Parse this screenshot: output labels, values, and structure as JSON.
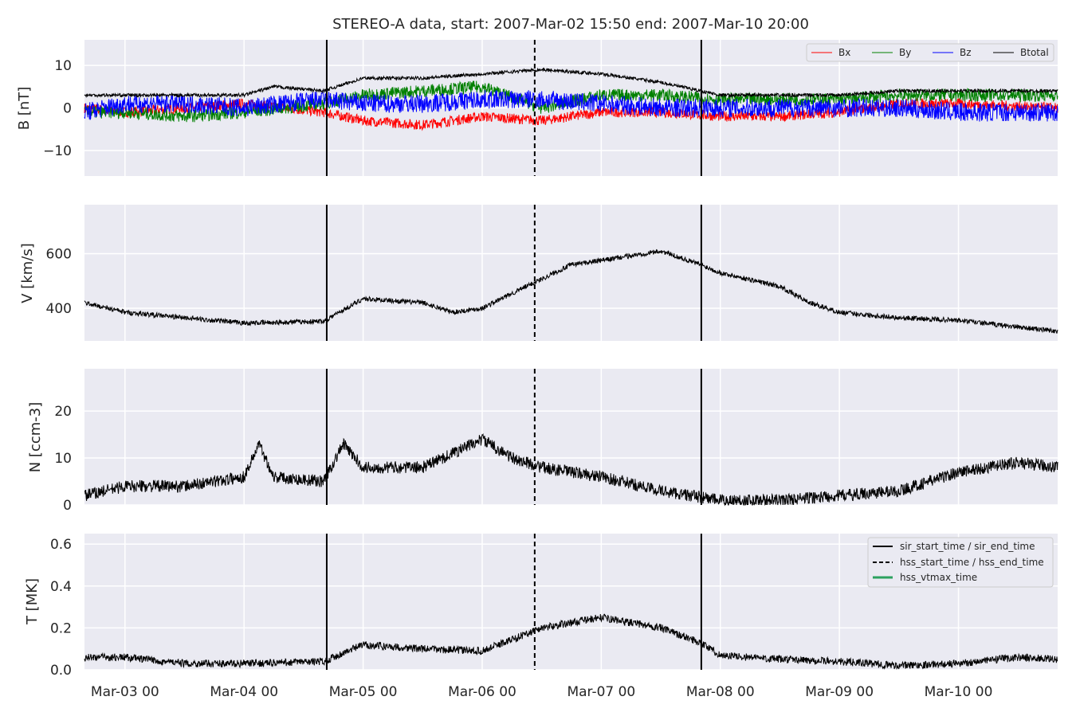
{
  "chart_data": {
    "type": "line",
    "title": "STEREO-A data, start: 2007-Mar-02 15:50  end: 2007-Mar-10 20:00",
    "x_range": [
      "2007-03-02 15:50",
      "2007-03-10 20:00"
    ],
    "x_ticks": [
      {
        "t": "2007-03-03 00:00",
        "label": "Mar-03 00"
      },
      {
        "t": "2007-03-04 00:00",
        "label": "Mar-04 00"
      },
      {
        "t": "2007-03-05 00:00",
        "label": "Mar-05 00"
      },
      {
        "t": "2007-03-06 00:00",
        "label": "Mar-06 00"
      },
      {
        "t": "2007-03-07 00:00",
        "label": "Mar-07 00"
      },
      {
        "t": "2007-03-08 00:00",
        "label": "Mar-08 00"
      },
      {
        "t": "2007-03-09 00:00",
        "label": "Mar-09 00"
      },
      {
        "t": "2007-03-10 00:00",
        "label": "Mar-10 00"
      }
    ],
    "event_lines": [
      {
        "t": "2007-03-04 16:40",
        "style": "solid"
      },
      {
        "t": "2007-03-06 10:35",
        "style": "dashed"
      },
      {
        "t": "2007-03-07 20:10",
        "style": "solid"
      }
    ],
    "panels": [
      {
        "key": "B",
        "ylabel": "B [nT]",
        "ylim": [
          -16,
          16
        ],
        "yticks": [
          -10,
          0,
          10
        ],
        "legend_position": "upper right",
        "series": [
          {
            "name": "Bx",
            "color": "#ff0000",
            "noise": 1.2,
            "points": [
              [
                "2007-03-02 15:50",
                0
              ],
              [
                "2007-03-03 00:00",
                -1
              ],
              [
                "2007-03-03 12:00",
                0
              ],
              [
                "2007-03-04 00:00",
                1
              ],
              [
                "2007-03-04 16:00",
                -1
              ],
              [
                "2007-03-05 00:00",
                -3
              ],
              [
                "2007-03-05 12:00",
                -4
              ],
              [
                "2007-03-06 00:00",
                -2
              ],
              [
                "2007-03-06 12:00",
                -3
              ],
              [
                "2007-03-07 00:00",
                -1
              ],
              [
                "2007-03-07 12:00",
                -1
              ],
              [
                "2007-03-08 00:00",
                -2
              ],
              [
                "2007-03-08 12:00",
                -2
              ],
              [
                "2007-03-09 00:00",
                -1
              ],
              [
                "2007-03-09 12:00",
                1
              ],
              [
                "2007-03-10 00:00",
                1
              ],
              [
                "2007-03-10 20:00",
                0
              ]
            ]
          },
          {
            "name": "By",
            "color": "#008000",
            "noise": 1.5,
            "points": [
              [
                "2007-03-02 15:50",
                -1
              ],
              [
                "2007-03-03 00:00",
                -1
              ],
              [
                "2007-03-03 12:00",
                -2
              ],
              [
                "2007-03-04 00:00",
                -1
              ],
              [
                "2007-03-04 16:00",
                1
              ],
              [
                "2007-03-05 00:00",
                3
              ],
              [
                "2007-03-05 12:00",
                4
              ],
              [
                "2007-03-06 00:00",
                5
              ],
              [
                "2007-03-06 12:00",
                0
              ],
              [
                "2007-03-07 00:00",
                3
              ],
              [
                "2007-03-07 12:00",
                3
              ],
              [
                "2007-03-08 00:00",
                2
              ],
              [
                "2007-03-08 12:00",
                2
              ],
              [
                "2007-03-09 00:00",
                2
              ],
              [
                "2007-03-09 12:00",
                3
              ],
              [
                "2007-03-10 00:00",
                3
              ],
              [
                "2007-03-10 20:00",
                3
              ]
            ]
          },
          {
            "name": "Bz",
            "color": "#0000ff",
            "noise": 2.2,
            "points": [
              [
                "2007-03-02 15:50",
                -1
              ],
              [
                "2007-03-03 00:00",
                1
              ],
              [
                "2007-03-03 12:00",
                1
              ],
              [
                "2007-03-04 00:00",
                0
              ],
              [
                "2007-03-04 16:00",
                2
              ],
              [
                "2007-03-05 00:00",
                1
              ],
              [
                "2007-03-05 12:00",
                1
              ],
              [
                "2007-03-06 00:00",
                2
              ],
              [
                "2007-03-06 12:00",
                2
              ],
              [
                "2007-03-07 00:00",
                1
              ],
              [
                "2007-03-07 12:00",
                0
              ],
              [
                "2007-03-08 00:00",
                0
              ],
              [
                "2007-03-08 12:00",
                0
              ],
              [
                "2007-03-09 00:00",
                0
              ],
              [
                "2007-03-09 12:00",
                0
              ],
              [
                "2007-03-10 00:00",
                -1
              ],
              [
                "2007-03-10 20:00",
                -1
              ]
            ]
          },
          {
            "name": "Btotal",
            "color": "#000000",
            "noise": 0.4,
            "points": [
              [
                "2007-03-02 15:50",
                3
              ],
              [
                "2007-03-03 00:00",
                3
              ],
              [
                "2007-03-03 12:00",
                3
              ],
              [
                "2007-03-04 00:00",
                3
              ],
              [
                "2007-03-04 06:00",
                5
              ],
              [
                "2007-03-04 16:00",
                4
              ],
              [
                "2007-03-05 00:00",
                7
              ],
              [
                "2007-03-05 12:00",
                7
              ],
              [
                "2007-03-06 00:00",
                8
              ],
              [
                "2007-03-06 12:00",
                9
              ],
              [
                "2007-03-07 00:00",
                8
              ],
              [
                "2007-03-07 12:00",
                6
              ],
              [
                "2007-03-08 00:00",
                3
              ],
              [
                "2007-03-08 12:00",
                3
              ],
              [
                "2007-03-09 00:00",
                3
              ],
              [
                "2007-03-09 12:00",
                4
              ],
              [
                "2007-03-10 00:00",
                4
              ],
              [
                "2007-03-10 20:00",
                4
              ]
            ]
          }
        ]
      },
      {
        "key": "V",
        "ylabel": "V [km/s]",
        "ylim": [
          280,
          780
        ],
        "yticks": [
          400,
          600
        ],
        "series": [
          {
            "name": "V",
            "color": "#000000",
            "noise": 9,
            "points": [
              [
                "2007-03-02 15:50",
                420
              ],
              [
                "2007-03-03 00:00",
                385
              ],
              [
                "2007-03-03 12:00",
                365
              ],
              [
                "2007-03-04 00:00",
                345
              ],
              [
                "2007-03-04 16:00",
                352
              ],
              [
                "2007-03-05 00:00",
                435
              ],
              [
                "2007-03-05 12:00",
                420
              ],
              [
                "2007-03-05 18:00",
                385
              ],
              [
                "2007-03-06 00:00",
                400
              ],
              [
                "2007-03-06 10:00",
                490
              ],
              [
                "2007-03-06 18:00",
                560
              ],
              [
                "2007-03-07 00:00",
                575
              ],
              [
                "2007-03-07 12:00",
                610
              ],
              [
                "2007-03-07 20:00",
                560
              ],
              [
                "2007-03-08 00:00",
                530
              ],
              [
                "2007-03-08 12:00",
                480
              ],
              [
                "2007-03-08 18:00",
                420
              ],
              [
                "2007-03-09 00:00",
                385
              ],
              [
                "2007-03-09 12:00",
                365
              ],
              [
                "2007-03-10 00:00",
                355
              ],
              [
                "2007-03-10 20:00",
                315
              ]
            ]
          }
        ]
      },
      {
        "key": "N",
        "ylabel": "N [ccm-3]",
        "ylim": [
          0,
          29
        ],
        "yticks": [
          0,
          10,
          20
        ],
        "series": [
          {
            "name": "N",
            "color": "#000000",
            "noise": 1.3,
            "points": [
              [
                "2007-03-02 15:50",
                2
              ],
              [
                "2007-03-03 00:00",
                4
              ],
              [
                "2007-03-03 12:00",
                4
              ],
              [
                "2007-03-04 00:00",
                6
              ],
              [
                "2007-03-04 03:00",
                13
              ],
              [
                "2007-03-04 06:00",
                6
              ],
              [
                "2007-03-04 16:00",
                5
              ],
              [
                "2007-03-04 20:00",
                13
              ],
              [
                "2007-03-05 00:00",
                8
              ],
              [
                "2007-03-05 12:00",
                8
              ],
              [
                "2007-03-05 18:00",
                11
              ],
              [
                "2007-03-06 00:00",
                14
              ],
              [
                "2007-03-06 06:00",
                10
              ],
              [
                "2007-03-06 12:00",
                8
              ],
              [
                "2007-03-07 00:00",
                6
              ],
              [
                "2007-03-07 12:00",
                3
              ],
              [
                "2007-03-08 00:00",
                1
              ],
              [
                "2007-03-08 12:00",
                1
              ],
              [
                "2007-03-09 00:00",
                2
              ],
              [
                "2007-03-09 12:00",
                3
              ],
              [
                "2007-03-10 00:00",
                7
              ],
              [
                "2007-03-10 12:00",
                9
              ],
              [
                "2007-03-10 20:00",
                8
              ]
            ]
          }
        ]
      },
      {
        "key": "T",
        "ylabel": "T [MK]",
        "ylim": [
          0,
          0.65
        ],
        "yticks": [
          0.0,
          0.2,
          0.4,
          0.6
        ],
        "ytick_labels": [
          "0.0",
          "0.2",
          "0.4",
          "0.6"
        ],
        "legend_position": "upper right",
        "legend": [
          {
            "label": "sir_start_time / sir_end_time",
            "color": "#000000",
            "style": "solid"
          },
          {
            "label": "hss_start_time / hss_end_time",
            "color": "#000000",
            "style": "dashed"
          },
          {
            "label": "hss_vtmax_time",
            "color": "#2ca25f",
            "style": "solid"
          }
        ],
        "series": [
          {
            "name": "T",
            "color": "#000000",
            "noise": 0.018,
            "points": [
              [
                "2007-03-02 15:50",
                0.06
              ],
              [
                "2007-03-03 00:00",
                0.06
              ],
              [
                "2007-03-03 12:00",
                0.03
              ],
              [
                "2007-03-04 00:00",
                0.03
              ],
              [
                "2007-03-04 16:00",
                0.04
              ],
              [
                "2007-03-05 00:00",
                0.12
              ],
              [
                "2007-03-05 12:00",
                0.1
              ],
              [
                "2007-03-06 00:00",
                0.09
              ],
              [
                "2007-03-06 12:00",
                0.2
              ],
              [
                "2007-03-07 00:00",
                0.25
              ],
              [
                "2007-03-07 12:00",
                0.2
              ],
              [
                "2007-03-07 20:00",
                0.13
              ],
              [
                "2007-03-08 00:00",
                0.07
              ],
              [
                "2007-03-08 12:00",
                0.05
              ],
              [
                "2007-03-09 00:00",
                0.04
              ],
              [
                "2007-03-09 12:00",
                0.02
              ],
              [
                "2007-03-10 00:00",
                0.03
              ],
              [
                "2007-03-10 12:00",
                0.06
              ],
              [
                "2007-03-10 20:00",
                0.05
              ]
            ]
          }
        ]
      }
    ]
  }
}
